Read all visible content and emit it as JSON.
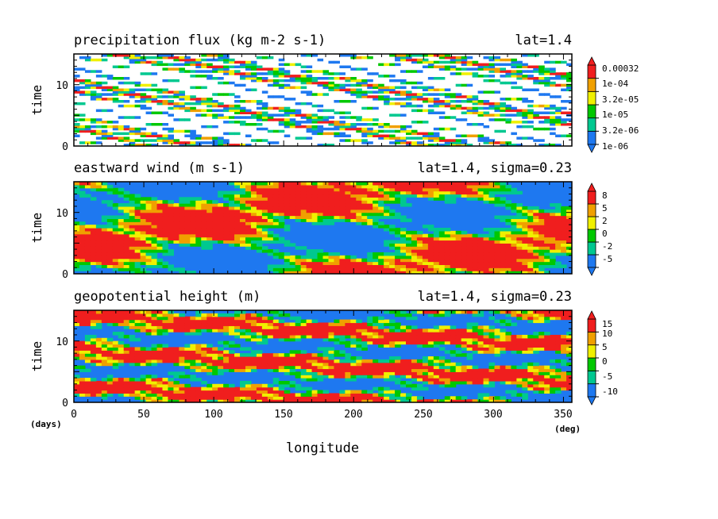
{
  "chart_data": [
    {
      "type": "heatmap",
      "title": "precipitation flux (kg m-2 s-1)",
      "subtitle": "lat=1.4",
      "ylabel": "time",
      "xlabel": "longitude",
      "xlim": [
        0,
        356
      ],
      "ylim": [
        0,
        15
      ],
      "x_ticks": [
        "0",
        "50",
        "100",
        "150",
        "200",
        "250",
        "300",
        "350"
      ],
      "y_ticks": [
        "0",
        "10"
      ],
      "legend": [
        "1e-06",
        "3.2e-06",
        "1e-05",
        "3.2e-05",
        "1e-04",
        "0.00032"
      ]
    },
    {
      "type": "heatmap",
      "title": "eastward wind (m s-1)",
      "subtitle": "lat=1.4, sigma=0.23",
      "ylabel": "time",
      "xlabel": "longitude",
      "xlim": [
        0,
        356
      ],
      "ylim": [
        0,
        15
      ],
      "x_ticks": [
        "0",
        "50",
        "100",
        "150",
        "200",
        "250",
        "300",
        "350"
      ],
      "y_ticks": [
        "0",
        "10"
      ],
      "legend": [
        "-5",
        "-2",
        "0",
        "2",
        "5",
        "8"
      ]
    },
    {
      "type": "heatmap",
      "title": "geopotential height (m)",
      "subtitle": "lat=1.4, sigma=0.23",
      "ylabel": "time",
      "xlabel": "longitude",
      "xlim": [
        0,
        356
      ],
      "ylim": [
        0,
        15
      ],
      "x_ticks": [
        "0",
        "50",
        "100",
        "150",
        "200",
        "250",
        "300",
        "350"
      ],
      "y_ticks": [
        "0",
        "10"
      ],
      "legend": [
        "-10",
        "-5",
        "0",
        "5",
        "10",
        "15"
      ]
    }
  ],
  "axis": {
    "x_label": "longitude",
    "x_unit": "(deg)",
    "y_unit": "(days)",
    "x_ticks": [
      "0",
      "50",
      "100",
      "150",
      "200",
      "250",
      "300",
      "350"
    ]
  },
  "colors": {
    "levels": [
      "#1e78f0",
      "#00c890",
      "#00c800",
      "#f0f000",
      "#f0a000",
      "#f01e1e"
    ],
    "white": "#ffffff"
  }
}
